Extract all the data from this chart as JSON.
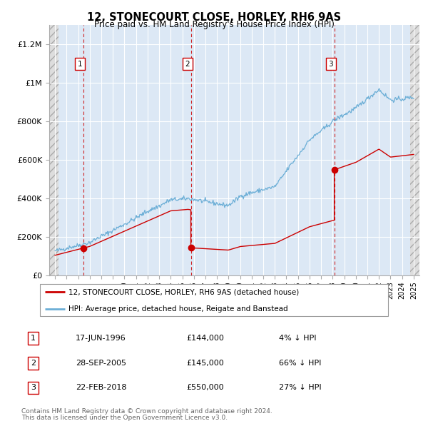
{
  "title": "12, STONECOURT CLOSE, HORLEY, RH6 9AS",
  "subtitle": "Price paid vs. HM Land Registry's House Price Index (HPI)",
  "legend_line1": "12, STONECOURT CLOSE, HORLEY, RH6 9AS (detached house)",
  "legend_line2": "HPI: Average price, detached house, Reigate and Banstead",
  "footer_line1": "Contains HM Land Registry data © Crown copyright and database right 2024.",
  "footer_line2": "This data is licensed under the Open Government Licence v3.0.",
  "transactions": [
    {
      "num": 1,
      "date_num": 1996.46,
      "price": 144000,
      "label": "17-JUN-1996",
      "pct": "4% ↓ HPI"
    },
    {
      "num": 2,
      "date_num": 2005.74,
      "price": 145000,
      "label": "28-SEP-2005",
      "pct": "66% ↓ HPI"
    },
    {
      "num": 3,
      "date_num": 2018.14,
      "price": 550000,
      "label": "22-FEB-2018",
      "pct": "27% ↓ HPI"
    }
  ],
  "hpi_color": "#6baed6",
  "price_color": "#cc0000",
  "ylim": [
    0,
    1300000
  ],
  "xlim_start": 1993.5,
  "xlim_end": 2025.5,
  "yticks": [
    0,
    200000,
    400000,
    600000,
    800000,
    1000000,
    1200000
  ],
  "ytick_labels": [
    "£0",
    "£200K",
    "£400K",
    "£600K",
    "£800K",
    "£1M",
    "£1.2M"
  ]
}
